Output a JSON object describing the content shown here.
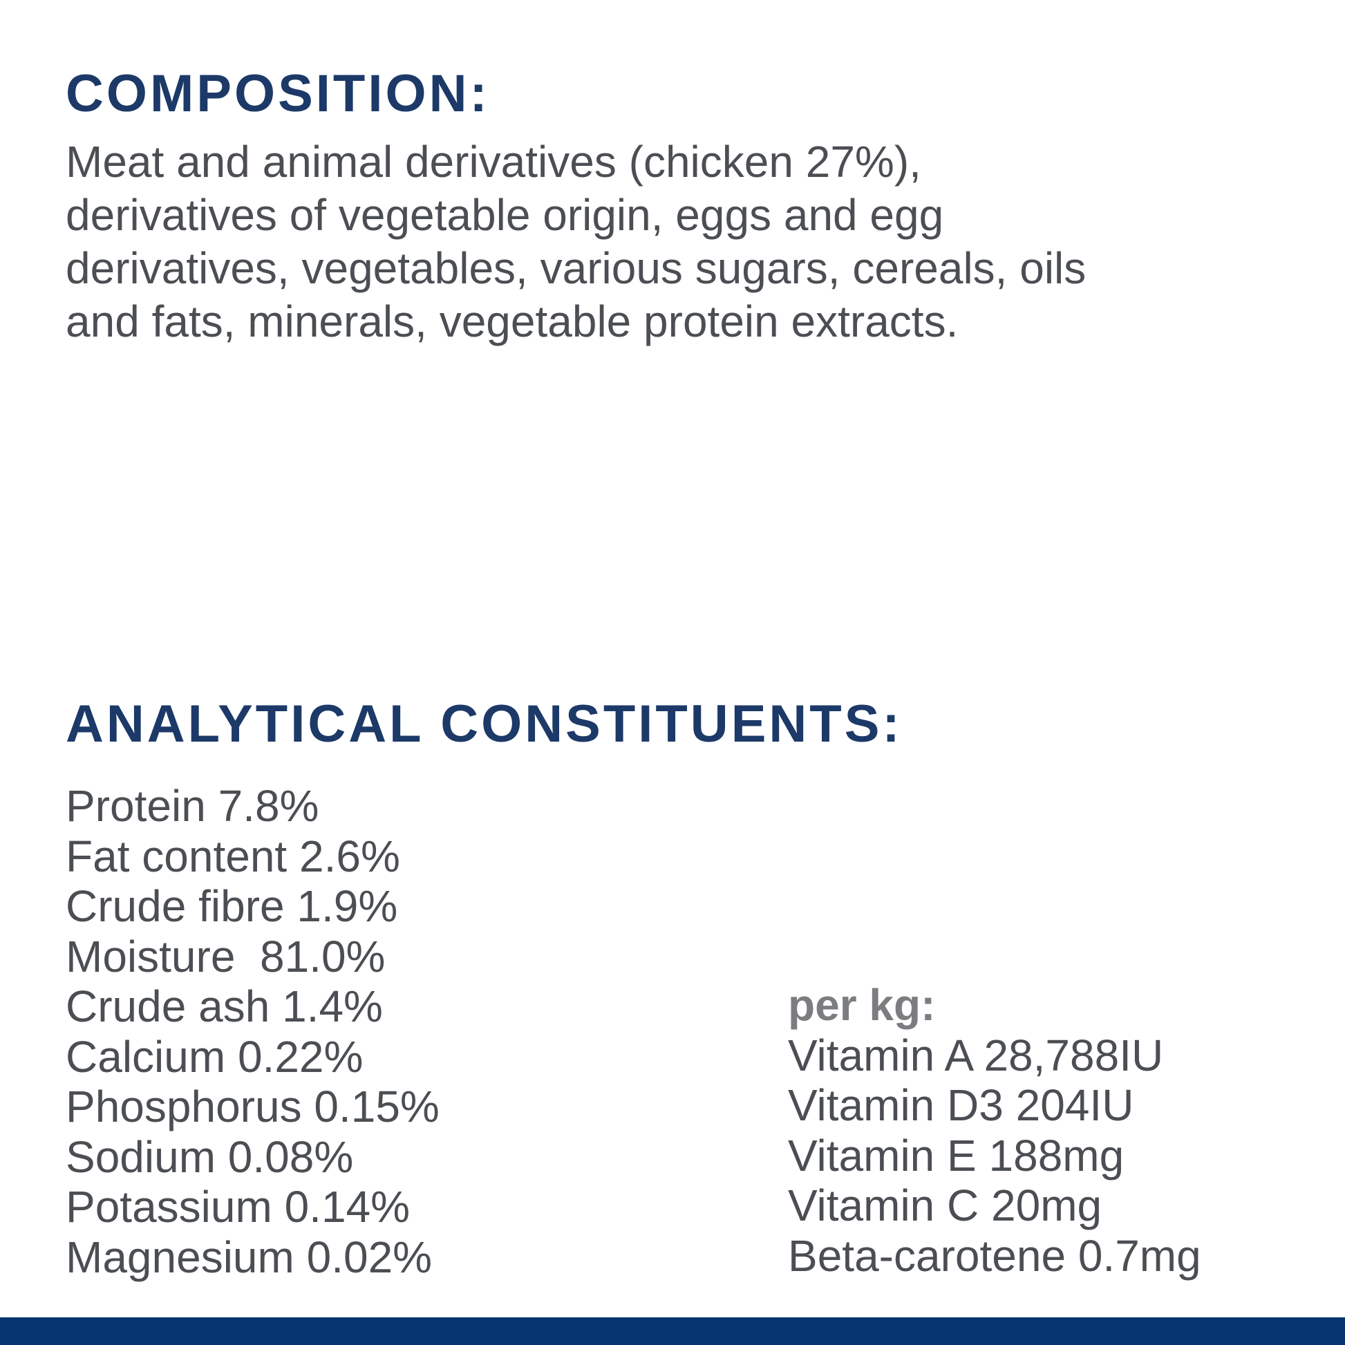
{
  "label": {
    "composition": {
      "heading": "COMPOSITION:",
      "body_lines": [
        "Meat and animal derivatives (chicken 27%),",
        "derivatives of vegetable origin, eggs and egg",
        "derivatives, vegetables, various sugars, cereals, oils",
        "and fats, minerals, vegetable protein extracts."
      ]
    },
    "analytical": {
      "heading": "ANALYTICAL CONSTITUENTS:",
      "nutrients": [
        "Protein 7.8%",
        "Fat content 2.6%",
        "Crude fibre 1.9%",
        "Moisture  81.0%",
        "Crude ash 1.4%",
        "Calcium 0.22%",
        "Phosphorus 0.15%",
        "Sodium 0.08%",
        "Potassium 0.14%",
        "Magnesium 0.02%"
      ],
      "per_kg": {
        "label": "per kg:",
        "items": [
          "Vitamin A 28,788IU",
          "Vitamin D3 204IU",
          "Vitamin E 188mg",
          "Vitamin C 20mg",
          "Beta-carotene 0.7mg"
        ]
      }
    },
    "colors": {
      "heading_navy": "#1c3968",
      "bottom_bar_navy": "#04356e",
      "body_gray": "#4b4e53",
      "per_kg_gray": "#7b7d80"
    }
  }
}
